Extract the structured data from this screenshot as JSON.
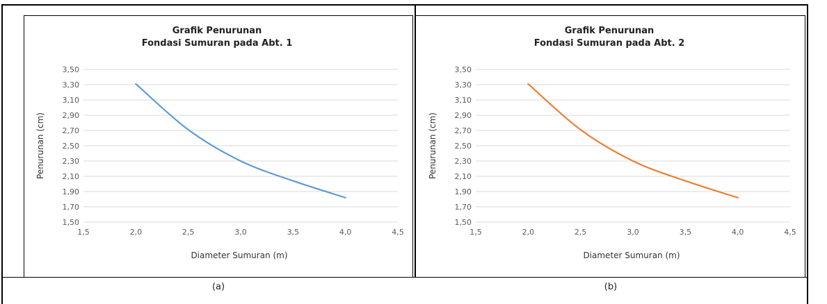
{
  "chart_data": [
    {
      "type": "line",
      "title_line1": "Grafik Penurunan",
      "title_line2": "Fondasi Sumuran pada Abt. 1",
      "xlabel": "Diameter Sumuran (m)",
      "ylabel": "Penurunan (cm)",
      "xlim": [
        1.5,
        4.5
      ],
      "ylim": [
        1.5,
        3.5
      ],
      "xticks": [
        "1,5",
        "2,0",
        "2,5",
        "3,0",
        "3,5",
        "4,0",
        "4,5"
      ],
      "yticks": [
        "1,50",
        "1,70",
        "1,90",
        "2,10",
        "2,30",
        "2,50",
        "2,70",
        "2,90",
        "3,10",
        "3,30",
        "3,50"
      ],
      "grid": true,
      "color": "#5b9bd5",
      "x": [
        2.0,
        2.5,
        3.0,
        3.5,
        4.0
      ],
      "y": [
        3.31,
        2.71,
        2.3,
        2.04,
        1.82
      ],
      "caption": "(a)"
    },
    {
      "type": "line",
      "title_line1": "Grafik Penurunan",
      "title_line2": "Fondasi Sumuran pada Abt. 2",
      "xlabel": "Diameter Sumuran (m)",
      "ylabel": "Penurunan (cm)",
      "xlim": [
        1.5,
        4.5
      ],
      "ylim": [
        1.5,
        3.5
      ],
      "xticks": [
        "1,5",
        "2,0",
        "2,5",
        "3,0",
        "3,5",
        "4,0",
        "4,5"
      ],
      "yticks": [
        "1,50",
        "1,70",
        "1,90",
        "2,10",
        "2,30",
        "2,50",
        "2,70",
        "2,90",
        "3,10",
        "3,30",
        "3,50"
      ],
      "grid": true,
      "color": "#ed7d31",
      "x": [
        2.0,
        2.5,
        3.0,
        3.5,
        4.0
      ],
      "y": [
        3.31,
        2.71,
        2.3,
        2.04,
        1.82
      ],
      "caption": "(b)"
    }
  ]
}
